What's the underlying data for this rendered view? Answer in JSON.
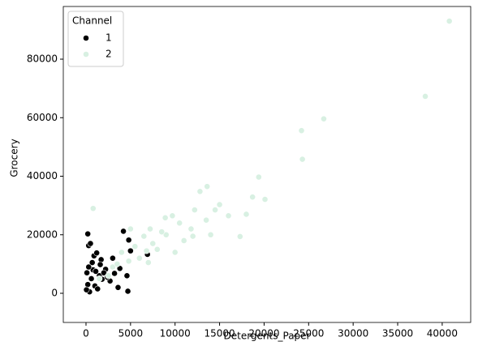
{
  "chart_data": {
    "type": "scatter",
    "x_label": "Detergents_Paper",
    "y_label": "Grocery",
    "legend_title": "Channel",
    "legend_position": "upper left",
    "xlim": [
      -2550,
      43200
    ],
    "ylim": [
      -9965,
      98000
    ],
    "xticks": [
      0,
      5000,
      10000,
      15000,
      20000,
      25000,
      30000,
      35000,
      40000
    ],
    "yticks": [
      0,
      20000,
      40000,
      60000,
      80000
    ],
    "series": [
      {
        "name": "1",
        "color": "#000000",
        "x": [
          4200,
          4800,
          5000,
          6900,
          4600,
          4700,
          3600,
          200,
          300,
          500,
          900,
          1200,
          1700,
          2200,
          3000,
          3200,
          2700,
          100,
          200,
          400,
          600,
          800,
          1000,
          1500,
          1300,
          1800,
          2000,
          50,
          300,
          700,
          1100,
          1600,
          2400,
          3800
        ],
        "y": [
          21200,
          18200,
          14500,
          13300,
          6000,
          700,
          2000,
          20300,
          16300,
          17000,
          12800,
          13800,
          11500,
          8200,
          12000,
          6800,
          4200,
          7000,
          3000,
          500,
          5000,
          8000,
          2500,
          6000,
          1500,
          4800,
          7000,
          1200,
          9000,
          10500,
          7500,
          9800,
          5500,
          8500
        ]
      },
      {
        "name": "2",
        "color": "#d8f0e2",
        "x": [
          40800,
          38100,
          26700,
          24200,
          24300,
          19400,
          20100,
          18700,
          13600,
          12800,
          14500,
          15000,
          16000,
          17300,
          18000,
          12200,
          11800,
          10500,
          9700,
          8900,
          9000,
          10000,
          7500,
          6500,
          5500,
          6000,
          4800,
          7000,
          3000,
          2500,
          1500,
          800,
          5000,
          7200,
          8000,
          11000,
          13500,
          14000,
          4000,
          3500,
          6800,
          8500,
          12000
        ],
        "y": [
          93000,
          67300,
          59600,
          55600,
          45800,
          39700,
          32100,
          32900,
          36500,
          34800,
          28500,
          30300,
          26500,
          19400,
          27000,
          28500,
          22000,
          24000,
          26500,
          25800,
          20000,
          14000,
          17000,
          19500,
          16000,
          12000,
          11000,
          10500,
          9000,
          6000,
          5000,
          29000,
          22000,
          22000,
          15000,
          18000,
          25000,
          20000,
          14000,
          10000,
          14500,
          21000,
          19500
        ]
      }
    ]
  }
}
